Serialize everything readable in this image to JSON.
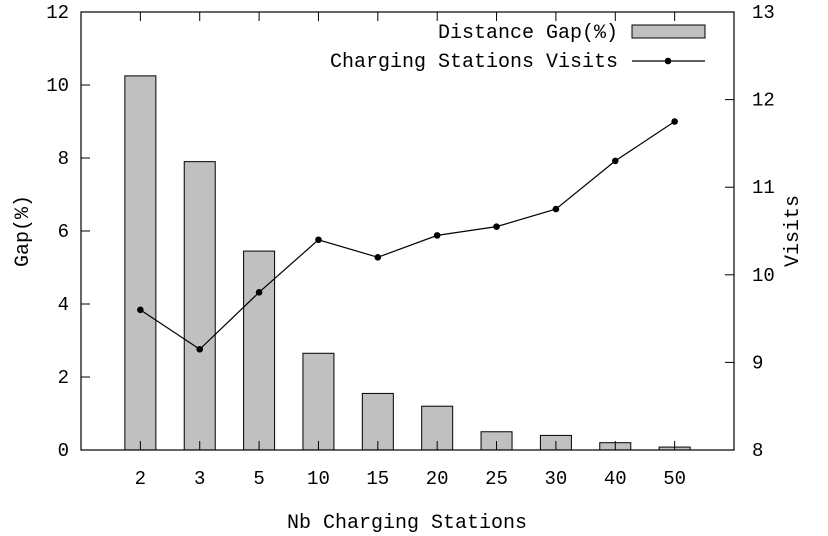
{
  "chart_data": {
    "type": "bar",
    "title": "",
    "xlabel": "Nb Charging Stations",
    "ylabel": "Gap(%)",
    "y2label": "Visits",
    "categories": [
      "2",
      "3",
      "5",
      "10",
      "15",
      "20",
      "25",
      "30",
      "40",
      "50"
    ],
    "ylim": [
      0,
      12
    ],
    "y2lim": [
      8,
      13
    ],
    "yticks": [
      "0",
      "2",
      "4",
      "6",
      "8",
      "10",
      "12"
    ],
    "y2ticks": [
      "8",
      "9",
      "10",
      "11",
      "12",
      "13"
    ],
    "grid": false,
    "legend_position": "top-right",
    "series": [
      {
        "name": "Distance Gap(%)",
        "kind": "bar",
        "axis": "left",
        "color": "#c0c0c0",
        "values": [
          10.25,
          7.9,
          5.45,
          2.65,
          1.55,
          1.2,
          0.5,
          0.4,
          0.2,
          0.08
        ]
      },
      {
        "name": "Charging Stations Visits",
        "kind": "line",
        "axis": "right",
        "color": "#000000",
        "values": [
          9.6,
          9.15,
          9.8,
          10.4,
          10.2,
          10.45,
          10.55,
          10.75,
          11.3,
          11.75
        ]
      }
    ]
  }
}
